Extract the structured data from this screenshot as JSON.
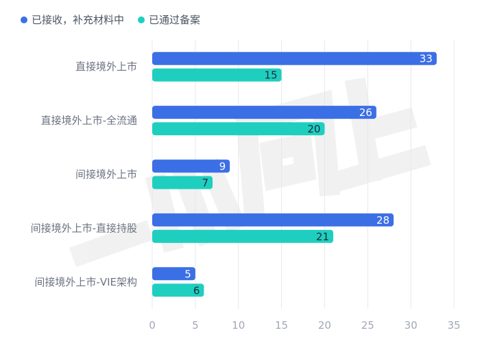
{
  "chart_data": {
    "type": "bar",
    "orientation": "horizontal",
    "categories": [
      "直接境外上市",
      "直接境外上市-全流通",
      "间接境外上市",
      "间接境外上市-直接持股",
      "间接境外上市-VIE架构"
    ],
    "series": [
      {
        "name": "已接收，补充材料中",
        "values": [
          33,
          26,
          9,
          28,
          5
        ],
        "color": "#3b6fe6"
      },
      {
        "name": "已通过备案",
        "values": [
          15,
          20,
          7,
          21,
          6
        ],
        "color": "#1ecfc0"
      }
    ],
    "xlim": [
      0,
      35
    ],
    "xticks": [
      0,
      5,
      10,
      15,
      20,
      25,
      30,
      35
    ],
    "grid": true,
    "legend": "top-left",
    "watermark_text": "一心向上"
  }
}
